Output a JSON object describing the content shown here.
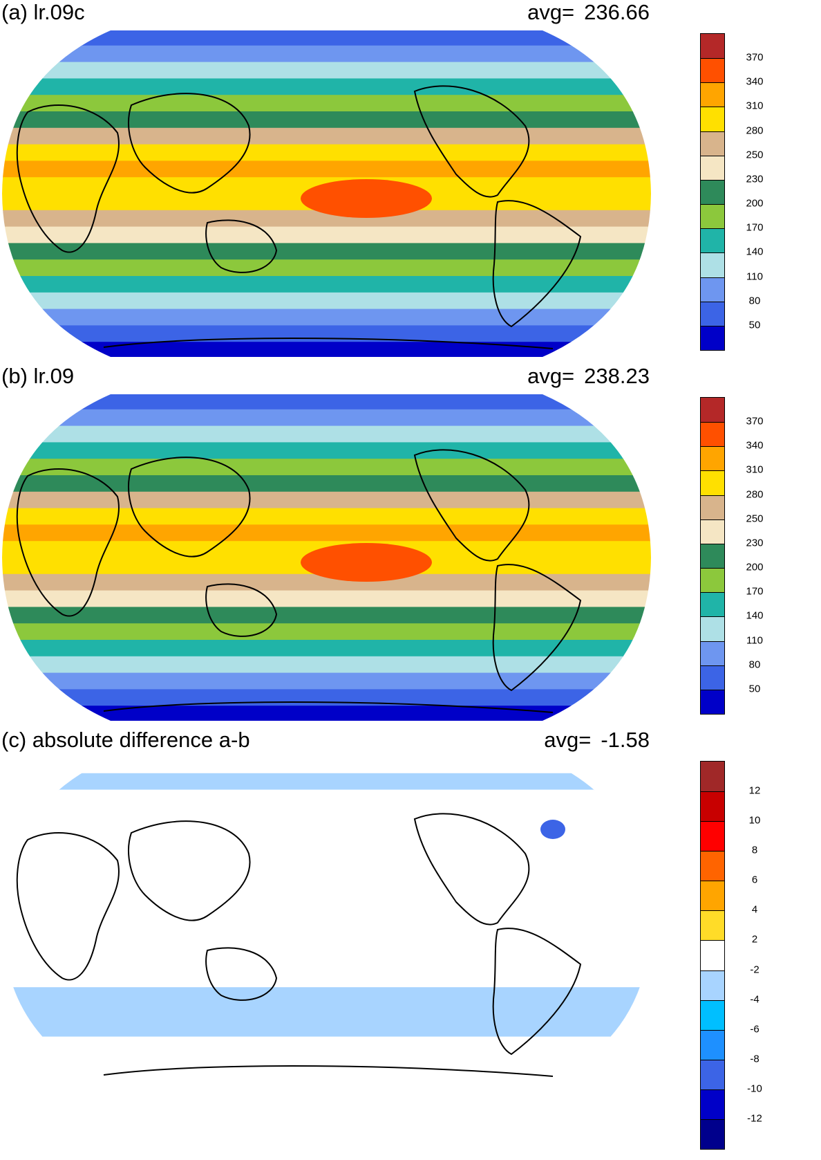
{
  "panels": [
    {
      "title": "(a) lr.09c",
      "avg_label": "avg=",
      "avg_value": "236.66",
      "colorbar": {
        "colors": [
          "#0000c8",
          "#3c64e6",
          "#6e96f0",
          "#aee0e6",
          "#20b4a8",
          "#8cc83c",
          "#2e8a5a",
          "#f5e6c4",
          "#d8b48c",
          "#ffe000",
          "#ffa500",
          "#ff5000",
          "#b42828"
        ],
        "labels": [
          "50",
          "80",
          "110",
          "140",
          "170",
          "200",
          "230",
          "250",
          "280",
          "310",
          "340",
          "370"
        ]
      },
      "map_bands": [
        "#3c64e6",
        "#6e96f0",
        "#aee0e6",
        "#20b4a8",
        "#8cc83c",
        "#2e8a5a",
        "#d8b48c",
        "#ffe000",
        "#ffa500",
        "#ffe000",
        "#ffe000",
        "#d8b48c",
        "#f5e6c4",
        "#2e8a5a",
        "#8cc83c",
        "#20b4a8",
        "#aee0e6",
        "#6e96f0",
        "#3c64e6",
        "#0000c8"
      ]
    },
    {
      "title": "(b) lr.09",
      "avg_label": "avg=",
      "avg_value": "238.23",
      "colorbar": {
        "colors": [
          "#0000c8",
          "#3c64e6",
          "#6e96f0",
          "#aee0e6",
          "#20b4a8",
          "#8cc83c",
          "#2e8a5a",
          "#f5e6c4",
          "#d8b48c",
          "#ffe000",
          "#ffa500",
          "#ff5000",
          "#b42828"
        ],
        "labels": [
          "50",
          "80",
          "110",
          "140",
          "170",
          "200",
          "230",
          "250",
          "280",
          "310",
          "340",
          "370"
        ]
      },
      "map_bands": [
        "#3c64e6",
        "#6e96f0",
        "#aee0e6",
        "#20b4a8",
        "#8cc83c",
        "#2e8a5a",
        "#d8b48c",
        "#ffe000",
        "#ffa500",
        "#ffe000",
        "#ffe000",
        "#d8b48c",
        "#f5e6c4",
        "#2e8a5a",
        "#8cc83c",
        "#20b4a8",
        "#aee0e6",
        "#6e96f0",
        "#3c64e6",
        "#0000c8"
      ]
    },
    {
      "title": "(c) absolute difference a-b",
      "avg_label": "avg=",
      "avg_value": "-1.58",
      "colorbar": {
        "colors": [
          "#00008c",
          "#0000c8",
          "#3c64e6",
          "#1e90ff",
          "#00bfff",
          "#a8d4ff",
          "#ffffff",
          "#ffdc28",
          "#ffa500",
          "#ff6400",
          "#ff0000",
          "#c80000",
          "#a02828"
        ],
        "labels": [
          "-12",
          "-10",
          "-8",
          "-6",
          "-4",
          "-2",
          "2",
          "4",
          "6",
          "8",
          "10",
          "12"
        ]
      },
      "map_bands": [
        "#ffffff",
        "#a8d4ff",
        "#ffffff",
        "#ffffff",
        "#ffffff",
        "#ffffff",
        "#ffffff",
        "#ffffff",
        "#ffffff",
        "#ffffff",
        "#ffffff",
        "#ffffff",
        "#ffffff",
        "#ffffff",
        "#a8d4ff",
        "#a8d4ff",
        "#a8d4ff",
        "#ffffff",
        "#ffffff",
        "#ffffff"
      ]
    }
  ]
}
